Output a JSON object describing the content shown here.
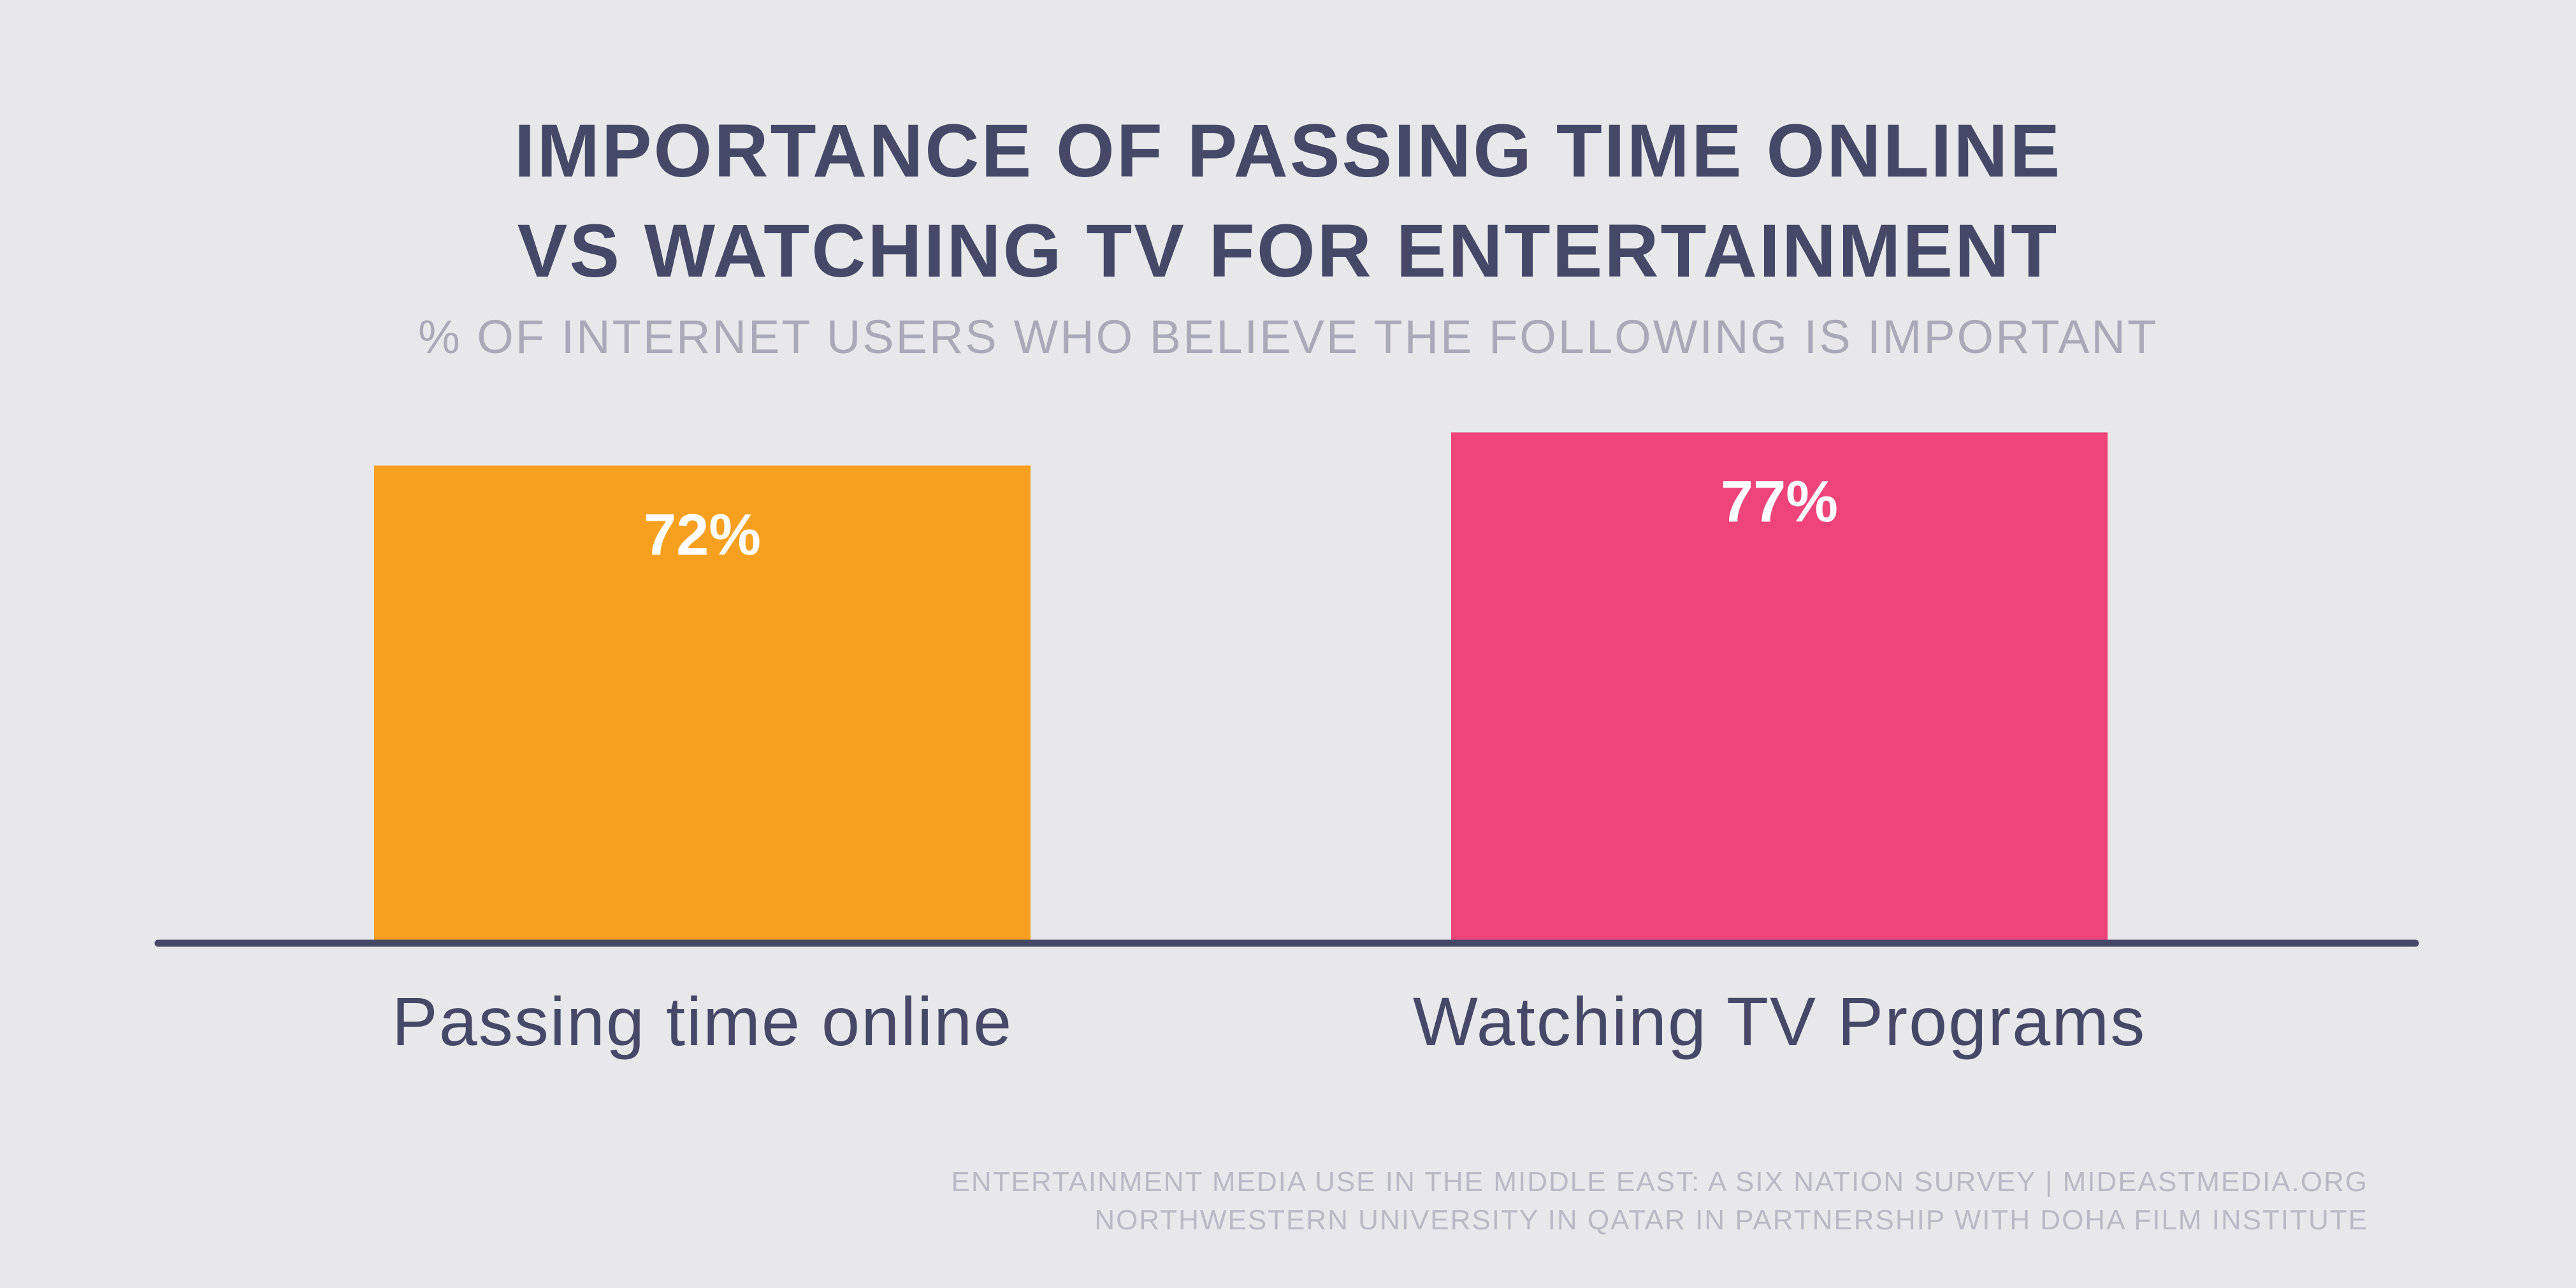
{
  "title_lines": [
    "IMPORTANCE OF PASSING TIME ONLINE",
    "VS WATCHING TV FOR ENTERTAINMENT"
  ],
  "subtitle": "% OF INTERNET USERS WHO BELIEVE THE FOLLOWING IS IMPORTANT",
  "colors": {
    "background": "#e8e8ea",
    "title": "#464868",
    "subtitle": "#a9a9b9",
    "baseline": "#464868",
    "category_label": "#464868",
    "value_label": "#ffffff",
    "source": "#b9b9c6"
  },
  "chart_data": {
    "type": "bar",
    "title": "IMPORTANCE OF PASSING TIME ONLINE VS WATCHING TV FOR ENTERTAINMENT",
    "subtitle": "% OF INTERNET USERS WHO BELIEVE THE FOLLOWING IS IMPORTANT",
    "categories": [
      "Passing time online",
      "Watching TV Programs"
    ],
    "values": [
      72,
      77
    ],
    "value_labels": [
      "72%",
      "77%"
    ],
    "bar_colors": [
      "#f7a01f",
      "#ee447a"
    ],
    "xlabel": "",
    "ylabel": "",
    "ylim": [
      0,
      100
    ],
    "grid": false,
    "legend": "none"
  },
  "source_lines": [
    "ENTERTAINMENT MEDIA USE IN THE MIDDLE EAST: A SIX NATION SURVEY | MIDEASTMEDIA.ORG",
    "NORTHWESTERN UNIVERSITY IN QATAR IN PARTNERSHIP WITH DOHA FILM INSTITUTE"
  ]
}
